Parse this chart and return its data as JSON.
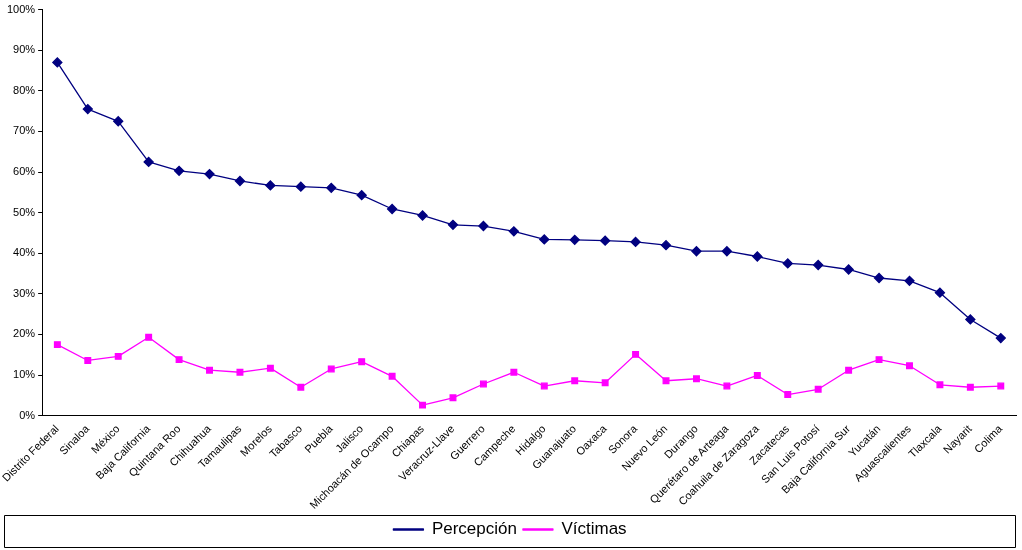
{
  "chart_data": {
    "type": "line",
    "categories": [
      "Distrito Federal",
      "Sinaloa",
      "México",
      "Baja California",
      "Quintana Roo",
      "Chihuahua",
      "Tamaulipas",
      "Morelos",
      "Tabasco",
      "Puebla",
      "Jalisco",
      "Michoacán de Ocampo",
      "Chiapas",
      "Veracruz-Llave",
      "Guerrero",
      "Campeche",
      "Hidalgo",
      "Guanajuato",
      "Oaxaca",
      "Sonora",
      "Nuevo León",
      "Durango",
      "Querétaro de Arteaga",
      "Coahuila de Zaragoza",
      "Zacatecas",
      "San Luis Potosí",
      "Baja California Sur",
      "Yucatán",
      "Aguascalientes",
      "Tlaxcala",
      "Nayarit",
      "Colima"
    ],
    "series": [
      {
        "name": "Percepción",
        "color": "#000080",
        "marker": "diamond",
        "values": [
          87,
          75.5,
          72.5,
          62.5,
          60.3,
          59.5,
          57.8,
          56.7,
          56.4,
          56.1,
          54.3,
          50.9,
          49.3,
          47,
          46.7,
          45.4,
          43.4,
          43.3,
          43.1,
          42.8,
          42,
          40.5,
          40.5,
          39.2,
          37.5,
          37.1,
          36,
          33.9,
          33.2,
          30.3,
          23.7,
          19.1
        ]
      },
      {
        "name": "Víctimas",
        "color": "#ff00ff",
        "marker": "square",
        "values": [
          17.5,
          13.6,
          14.6,
          19.3,
          13.8,
          11.2,
          10.7,
          11.7,
          7,
          11.5,
          13.3,
          9.7,
          2.6,
          4.4,
          7.8,
          10.7,
          7.3,
          8.6,
          8.1,
          15.1,
          8.6,
          9.1,
          7.3,
          9.9,
          5.2,
          6.5,
          11.2,
          13.8,
          12.3,
          7.6,
          7,
          7.3
        ]
      }
    ],
    "ylim": [
      0,
      100
    ],
    "yticks": [
      {
        "value": 0,
        "label": "0%"
      },
      {
        "value": 10,
        "label": "10%"
      },
      {
        "value": 20,
        "label": "20%"
      },
      {
        "value": 30,
        "label": "30%"
      },
      {
        "value": 40,
        "label": "40%"
      },
      {
        "value": 50,
        "label": "50%"
      },
      {
        "value": 60,
        "label": "60%"
      },
      {
        "value": 70,
        "label": "70%"
      },
      {
        "value": 80,
        "label": "80%"
      },
      {
        "value": 90,
        "label": "90%"
      },
      {
        "value": 100,
        "label": "100%"
      }
    ],
    "grid": false,
    "legend": "bottom",
    "line_style": "solid"
  }
}
